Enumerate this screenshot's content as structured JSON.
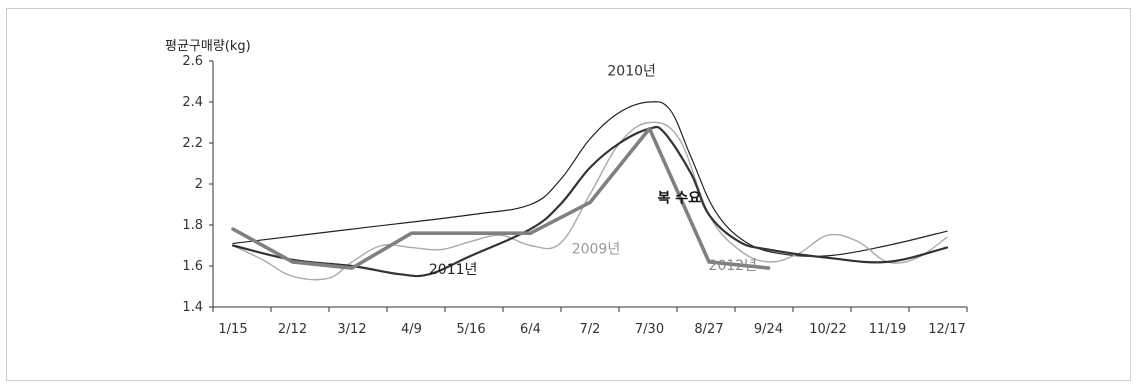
{
  "chart_data": {
    "type": "line",
    "ylabel": "평균구매량(kg)",
    "ylim": [
      1.4,
      2.6
    ],
    "yticks": [
      "1.4",
      "1.6",
      "1.8",
      "2",
      "2.2",
      "2.4",
      "2.6"
    ],
    "categories": [
      "1/15",
      "2/12",
      "3/12",
      "4/9",
      "5/16",
      "6/4",
      "7/2",
      "7/30",
      "8/27",
      "9/24",
      "10/22",
      "11/19",
      "12/17"
    ],
    "grid": false,
    "series": [
      {
        "name": "2010년",
        "color": "#222222",
        "x": [
          0,
          2,
          4,
          5,
          5.5,
          6,
          6.5,
          7,
          7.35,
          7.7,
          8.1,
          8.6,
          9.2,
          10,
          11,
          12
        ],
        "values": [
          1.71,
          1.78,
          1.85,
          1.9,
          2.02,
          2.22,
          2.35,
          2.4,
          2.36,
          2.13,
          1.87,
          1.72,
          1.66,
          1.65,
          1.7,
          1.77
        ]
      },
      {
        "name": "2009년",
        "color": "#aaaaaa",
        "x": [
          0,
          0.5,
          1,
          1.6,
          2,
          2.5,
          3,
          3.5,
          4,
          4.5,
          5,
          5.5,
          6,
          6.5,
          7,
          7.5,
          8,
          8.5,
          9,
          9.5,
          10,
          10.5,
          11,
          11.5,
          12
        ],
        "values": [
          1.7,
          1.63,
          1.55,
          1.54,
          1.62,
          1.7,
          1.69,
          1.68,
          1.72,
          1.75,
          1.7,
          1.71,
          1.95,
          2.2,
          2.3,
          2.22,
          1.85,
          1.68,
          1.62,
          1.66,
          1.75,
          1.72,
          1.62,
          1.64,
          1.74
        ]
      },
      {
        "name": "2011년",
        "color": "#333333",
        "x": [
          0,
          1,
          2,
          2.8,
          3.3,
          4,
          5,
          5.5,
          6,
          6.5,
          7,
          7.25,
          7.7,
          8,
          8.5,
          9,
          10,
          11,
          12
        ],
        "values": [
          1.7,
          1.63,
          1.6,
          1.56,
          1.56,
          1.65,
          1.78,
          1.9,
          2.08,
          2.2,
          2.27,
          2.25,
          2.05,
          1.85,
          1.72,
          1.68,
          1.64,
          1.62,
          1.69
        ]
      },
      {
        "name": "2012년",
        "color": "#808080",
        "x": [
          0,
          1,
          2,
          3,
          4,
          5,
          6,
          7,
          8,
          9
        ],
        "values": [
          1.78,
          1.62,
          1.59,
          1.76,
          1.76,
          1.76,
          1.91,
          2.27,
          1.62,
          1.59
        ]
      }
    ],
    "annotations": [
      {
        "text": "2010년",
        "color": "#333333",
        "x": 6.7,
        "y": 2.53
      },
      {
        "text": "2009년",
        "color": "#999999",
        "x": 6.1,
        "y": 1.66
      },
      {
        "text": "2011년",
        "color": "#222222",
        "x": 3.7,
        "y": 1.56
      },
      {
        "text": "2012년",
        "color": "#888888",
        "x": 8.4,
        "y": 1.58
      },
      {
        "text": "복 수요",
        "color": "#111111",
        "x": 7.5,
        "y": 1.91
      }
    ]
  }
}
